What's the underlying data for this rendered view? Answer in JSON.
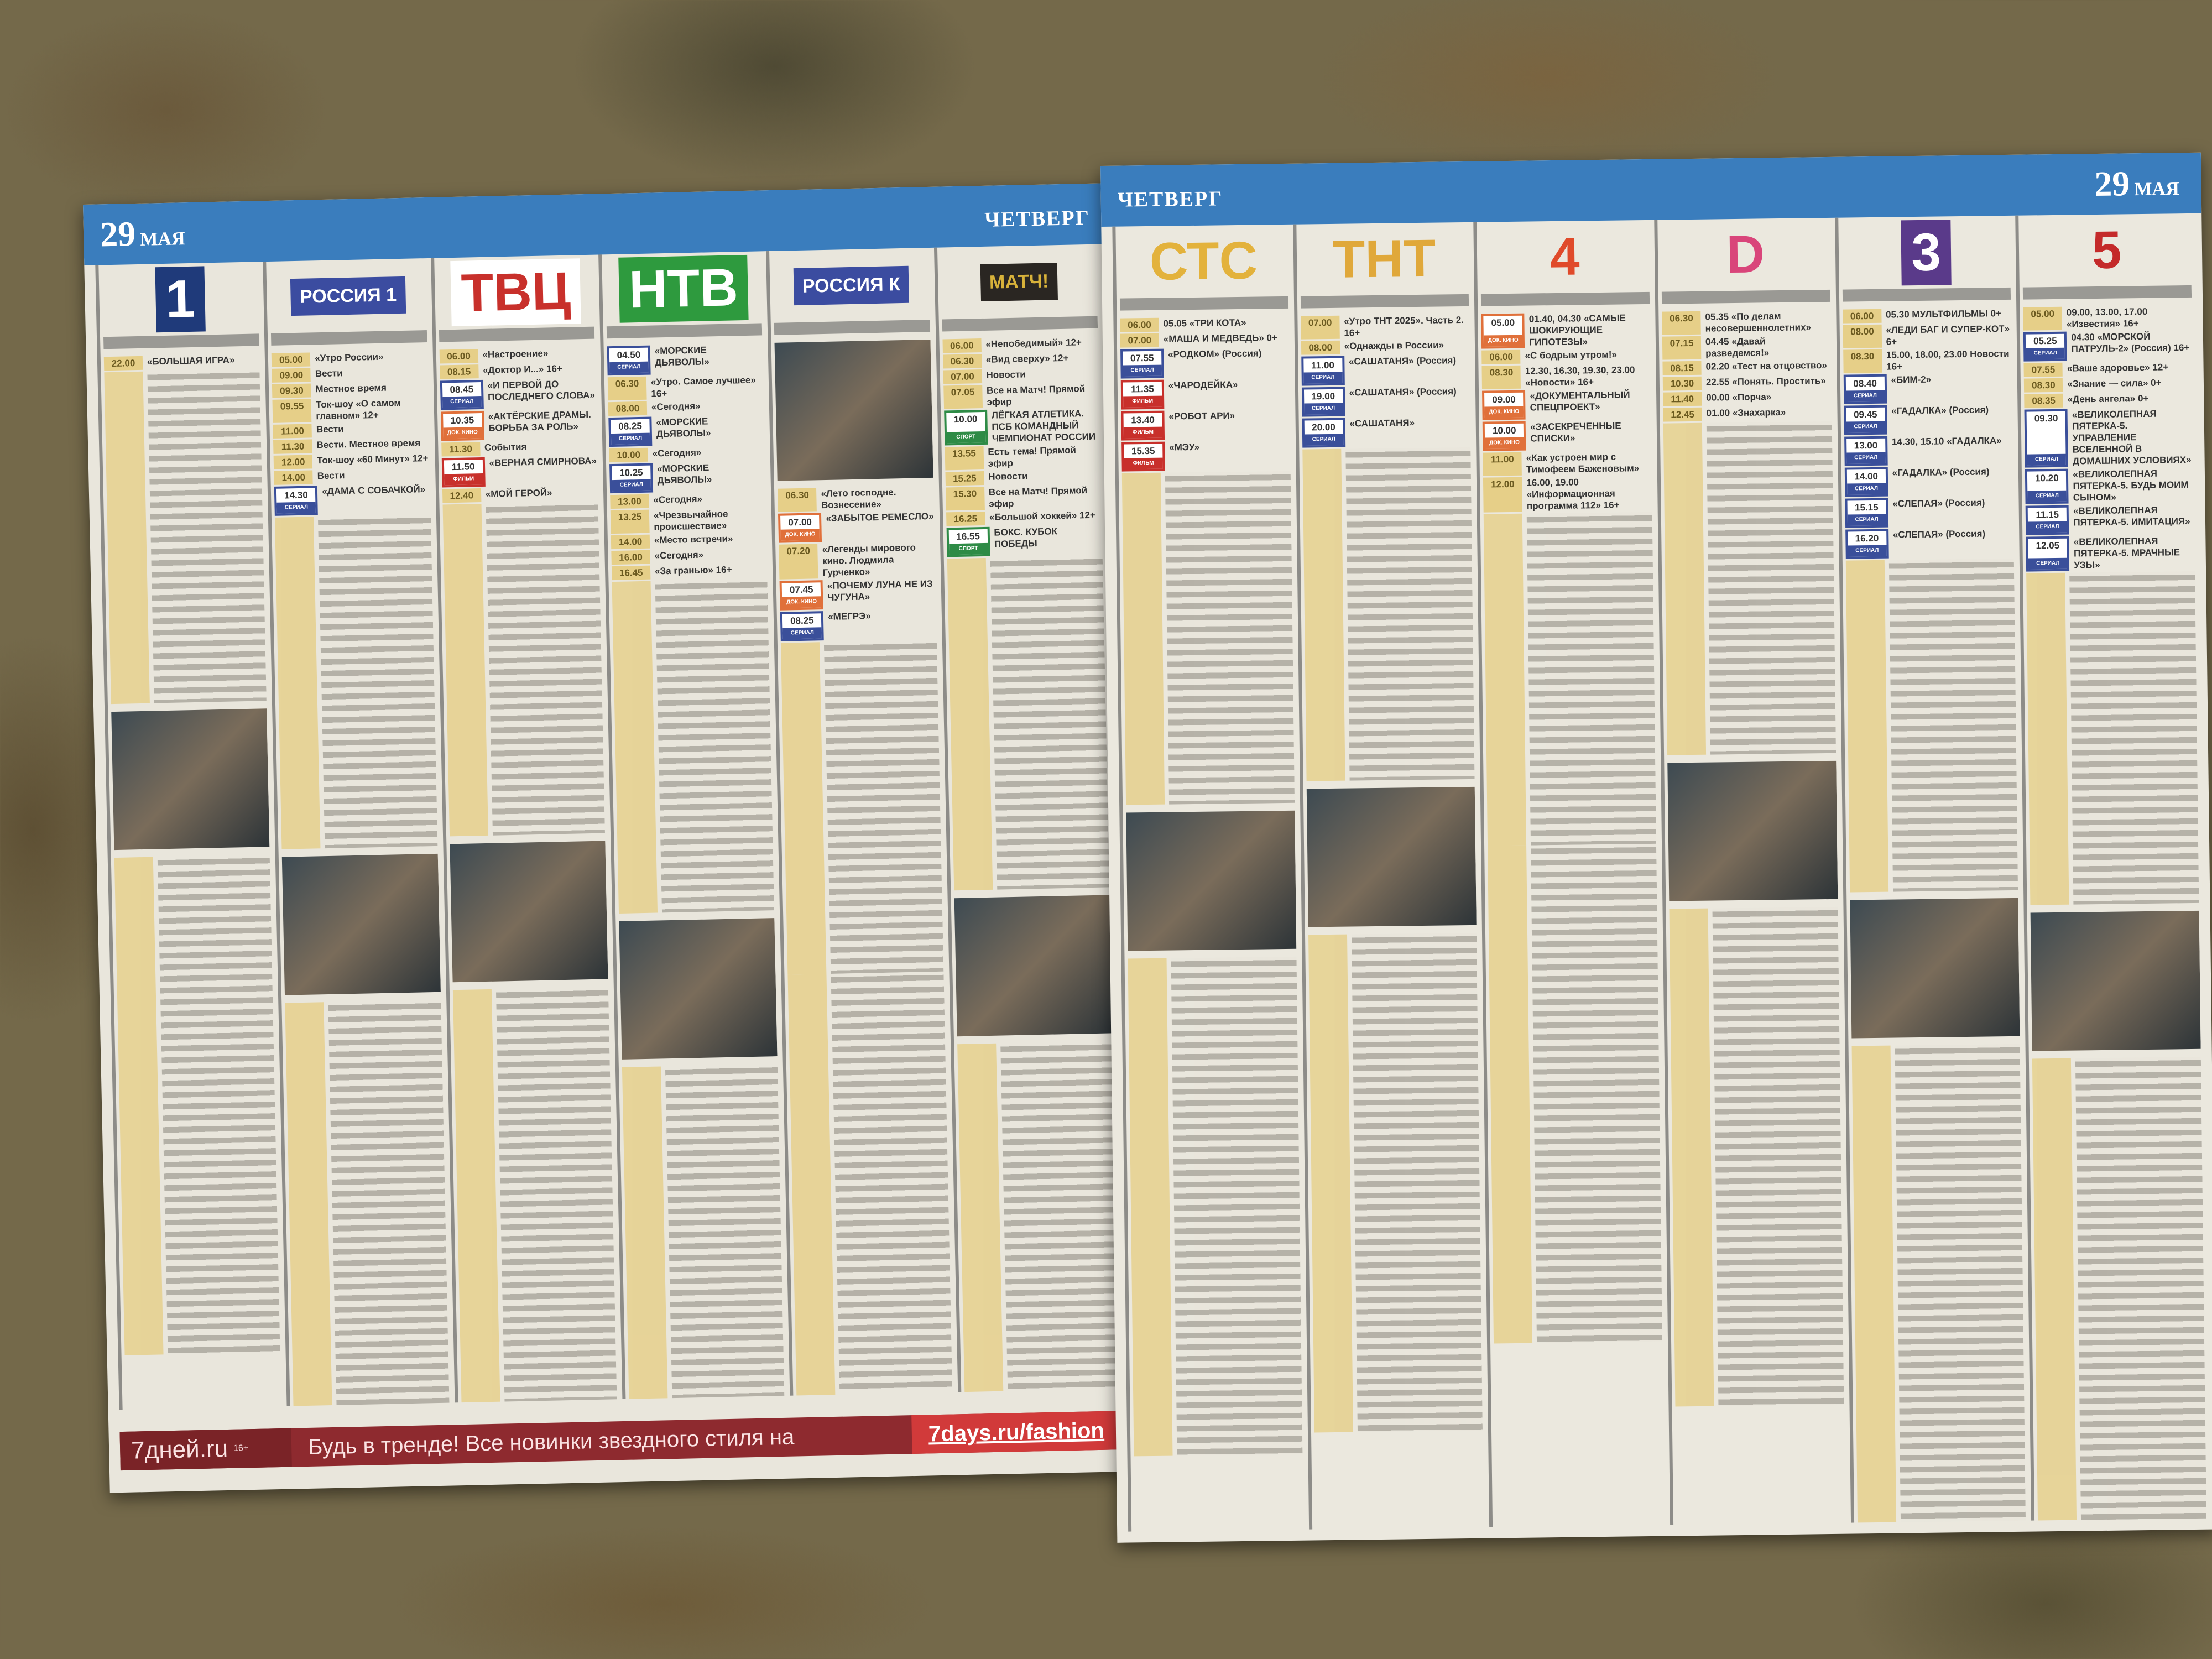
{
  "left_page": {
    "date": "29",
    "month": "МАЯ",
    "day": "ЧЕТВЕРГ",
    "channels": [
      {
        "logo": "1",
        "logo_bg": "#1f3a7a",
        "logo_fg": "#ffffff",
        "photo": true,
        "programs": [
          {
            "time": "22.00",
            "title": "«БОЛЬШАЯ ИГРА»"
          }
        ]
      },
      {
        "logo": "РОССИЯ 1",
        "logo_bg": "#3b4ca0",
        "logo_fg": "#ffffff",
        "photo": true,
        "programs": [
          {
            "time": "05.00",
            "title": "«Утро России»"
          },
          {
            "time": "09.00",
            "title": "Вести"
          },
          {
            "time": "09.30",
            "title": "Местное время"
          },
          {
            "time": "09.55",
            "title": "Ток-шоу «О самом главном» 12+"
          },
          {
            "time": "11.00",
            "title": "Вести"
          },
          {
            "time": "11.30",
            "title": "Вести. Местное время"
          },
          {
            "time": "12.00",
            "title": "Ток-шоу «60 Минут» 12+"
          },
          {
            "time": "14.00",
            "title": "Вести"
          },
          {
            "time": "14.30",
            "title": "«ДАМА С СОБАЧКОЙ»",
            "badge": "СЕРИАЛ",
            "kind": "serial"
          }
        ]
      },
      {
        "logo": "ТВЦ",
        "logo_bg": "#ffffff",
        "logo_fg": "#c8302b",
        "photo": true,
        "programs": [
          {
            "time": "06.00",
            "title": "«Настроение»"
          },
          {
            "time": "08.15",
            "title": "«Доктор И...» 16+"
          },
          {
            "time": "08.45",
            "title": "«И ПЕРВОЙ ДО ПОСЛЕДНЕГО СЛОВА»",
            "badge": "СЕРИАЛ",
            "kind": "serial"
          },
          {
            "time": "10.35",
            "title": "«АКТЁРСКИЕ ДРАМЫ. БОРЬБА ЗА РОЛЬ»",
            "badge": "ДОК. КИНО",
            "kind": "doc"
          },
          {
            "time": "11.30",
            "title": "События"
          },
          {
            "time": "11.50",
            "title": "«ВЕРНАЯ СМИРНОВА»",
            "badge": "ФИЛЬМ",
            "kind": "film"
          },
          {
            "time": "12.40",
            "title": "«МОЙ ГЕРОЙ»"
          }
        ]
      },
      {
        "logo": "НТВ",
        "logo_bg": "#2e9a3e",
        "logo_fg": "#ffffff",
        "photo": true,
        "programs": [
          {
            "time": "04.50",
            "title": "«МОРСКИЕ ДЬЯВОЛЫ»",
            "badge": "СЕРИАЛ",
            "kind": "serial"
          },
          {
            "time": "06.30",
            "title": "«Утро. Самое лучшее» 16+"
          },
          {
            "time": "08.00",
            "title": "«Сегодня»"
          },
          {
            "time": "08.25",
            "title": "«МОРСКИЕ ДЬЯВОЛЫ»",
            "badge": "СЕРИАЛ",
            "kind": "serial"
          },
          {
            "time": "10.00",
            "title": "«Сегодня»"
          },
          {
            "time": "10.25",
            "title": "«МОРСКИЕ ДЬЯВОЛЫ»",
            "badge": "СЕРИАЛ",
            "kind": "serial"
          },
          {
            "time": "13.00",
            "title": "«Сегодня»"
          },
          {
            "time": "13.25",
            "title": "«Чрезвычайное происшествие»"
          },
          {
            "time": "14.00",
            "title": "«Место встречи»"
          },
          {
            "time": "16.00",
            "title": "«Сегодня»"
          },
          {
            "time": "16.45",
            "title": "«За гранью» 16+"
          }
        ]
      },
      {
        "logo": "РОССИЯ К",
        "logo_bg": "#3b4ca0",
        "logo_fg": "#ffffff",
        "photo": true,
        "programs": [
          {
            "time": "06.30",
            "title": "«Лето господне. Вознесение»"
          },
          {
            "time": "07.00",
            "title": "«ЗАБЫТОЕ РЕМЕСЛО»",
            "badge": "ДОК. КИНО",
            "kind": "doc"
          },
          {
            "time": "07.20",
            "title": "«Легенды мирового кино. Людмила Гурченко»"
          },
          {
            "time": "07.45",
            "title": "«ПОЧЕМУ ЛУНА НЕ ИЗ ЧУГУНА»",
            "badge": "ДОК. КИНО",
            "kind": "doc"
          },
          {
            "time": "08.25",
            "title": "«МЕГРЭ»",
            "badge": "СЕРИАЛ",
            "kind": "serial"
          }
        ]
      },
      {
        "logo": "МАТЧ!",
        "logo_bg": "#2a2622",
        "logo_fg": "#d8b23a",
        "photo": true,
        "programs": [
          {
            "time": "06.00",
            "title": "«Непобедимый» 12+"
          },
          {
            "time": "06.30",
            "title": "«Вид сверху» 12+"
          },
          {
            "time": "07.00",
            "title": "Новости"
          },
          {
            "time": "07.05",
            "title": "Все на Матч! Прямой эфир"
          },
          {
            "time": "10.00",
            "title": "ЛЁГКАЯ АТЛЕТИКА. ПСБ КОМАНДНЫЙ ЧЕМПИОНАТ РОССИИ",
            "badge": "СПОРТ",
            "kind": "sport"
          },
          {
            "time": "13.55",
            "title": "Есть тема! Прямой эфир"
          },
          {
            "time": "15.25",
            "title": "Новости"
          },
          {
            "time": "15.30",
            "title": "Все на Матч! Прямой эфир"
          },
          {
            "time": "16.25",
            "title": "«Большой хоккей» 12+"
          },
          {
            "time": "16.55",
            "title": "БОКС. КУБОК ПОБЕДЫ",
            "badge": "СПОРТ",
            "kind": "sport"
          }
        ]
      }
    ],
    "ad": {
      "brand": "7дней.ru",
      "age": "16+",
      "slogan": "Будь в тренде! Все новинки звездного стиля на",
      "link": "7days.ru/fashion"
    }
  },
  "right_page": {
    "date": "29",
    "month": "МАЯ",
    "day": "ЧЕТВЕРГ",
    "channels": [
      {
        "logo": "СТС",
        "logo_bg": "transparent",
        "logo_fg": "#e3b23c",
        "photo": true,
        "programs": [
          {
            "time": "06.00",
            "title": "05.05 «ТРИ КОТА»"
          },
          {
            "time": "07.00",
            "title": "«МАША И МЕДВЕДЬ» 0+"
          },
          {
            "time": "07.55",
            "title": "«РОДКОМ» (Россия)",
            "badge": "СЕРИАЛ",
            "kind": "serial"
          },
          {
            "time": "11.35",
            "title": "«ЧАРОДЕЙКА»",
            "badge": "ФИЛЬМ",
            "kind": "film"
          },
          {
            "time": "13.40",
            "title": "«РОБОТ АРИ»",
            "badge": "ФИЛЬМ",
            "kind": "film"
          },
          {
            "time": "15.35",
            "title": "«МЭУ»",
            "badge": "ФИЛЬМ",
            "kind": "film"
          }
        ]
      },
      {
        "logo": "ТНТ",
        "logo_bg": "transparent",
        "logo_fg": "#e0a83a",
        "photo": true,
        "programs": [
          {
            "time": "07.00",
            "title": "«Утро ТНТ 2025». Часть 2. 16+"
          },
          {
            "time": "08.00",
            "title": "«Однажды в России»"
          },
          {
            "time": "11.00",
            "title": "«САШАТАНЯ» (Россия)",
            "badge": "СЕРИАЛ",
            "kind": "serial"
          },
          {
            "time": "19.00",
            "title": "«САШАТАНЯ» (Россия)",
            "badge": "СЕРИАЛ",
            "kind": "serial"
          },
          {
            "time": "20.00",
            "title": "«САШАТАНЯ»",
            "badge": "СЕРИАЛ",
            "kind": "serial"
          }
        ]
      },
      {
        "logo": "4",
        "logo_bg": "transparent",
        "logo_fg": "#e04a2a",
        "photo": false,
        "programs": [
          {
            "time": "05.00",
            "title": "01.40, 04.30 «САМЫЕ ШОКИРУЮЩИЕ ГИПОТЕЗЫ»",
            "badge": "ДОК. КИНО",
            "kind": "doc"
          },
          {
            "time": "06.00",
            "title": "«С бодрым утром!»"
          },
          {
            "time": "08.30",
            "title": "12.30, 16.30, 19.30, 23.00 «Новости» 16+"
          },
          {
            "time": "09.00",
            "title": "«ДОКУМЕНТАЛЬНЫЙ СПЕЦПРОЕКТ»",
            "badge": "ДОК. КИНО",
            "kind": "doc"
          },
          {
            "time": "10.00",
            "title": "«ЗАСЕКРЕЧЕННЫЕ СПИСКИ»",
            "badge": "ДОК. КИНО",
            "kind": "doc"
          },
          {
            "time": "11.00",
            "title": "«Как устроен мир с Тимофеем Баженовым»"
          },
          {
            "time": "12.00",
            "title": "16.00, 19.00 «Информационная программа 112» 16+"
          }
        ]
      },
      {
        "logo": "D",
        "logo_bg": "transparent",
        "logo_fg": "#d9457a",
        "photo": true,
        "programs": [
          {
            "time": "06.30",
            "title": "05.35 «По делам несовершеннолетних»"
          },
          {
            "time": "07.15",
            "title": "04.45 «Давай разведемся!»"
          },
          {
            "time": "08.15",
            "title": "02.20 «Тест на отцовство»"
          },
          {
            "time": "10.30",
            "title": "22.55 «Понять. Простить»"
          },
          {
            "time": "11.40",
            "title": "00.00 «Порча»"
          },
          {
            "time": "12.45",
            "title": "01.00 «Знахарка»"
          }
        ]
      },
      {
        "logo": "3",
        "logo_bg": "#5a3a8a",
        "logo_fg": "#ffffff",
        "photo": true,
        "programs": [
          {
            "time": "06.00",
            "title": "05.30 МУЛЬТФИЛЬМЫ 0+"
          },
          {
            "time": "08.00",
            "title": "«ЛЕДИ БАГ И СУПЕР-КОТ» 6+"
          },
          {
            "time": "08.30",
            "title": "15.00, 18.00, 23.00 Новости 16+"
          },
          {
            "time": "08.40",
            "title": "«БИМ-2»",
            "badge": "СЕРИАЛ",
            "kind": "serial"
          },
          {
            "time": "09.45",
            "title": "«ГАДАЛКА» (Россия)",
            "badge": "СЕРИАЛ",
            "kind": "serial"
          },
          {
            "time": "13.00",
            "title": "14.30, 15.10 «ГАДАЛКА»",
            "badge": "СЕРИАЛ",
            "kind": "serial"
          },
          {
            "time": "14.00",
            "title": "«ГАДАЛКА» (Россия)",
            "badge": "СЕРИАЛ",
            "kind": "serial"
          },
          {
            "time": "15.15",
            "title": "«СЛЕПАЯ» (Россия)",
            "badge": "СЕРИАЛ",
            "kind": "serial"
          },
          {
            "time": "16.20",
            "title": "«СЛЕПАЯ» (Россия)",
            "badge": "СЕРИАЛ",
            "kind": "serial"
          }
        ]
      },
      {
        "logo": "5",
        "logo_bg": "transparent",
        "logo_fg": "#c42a2a",
        "photo": true,
        "programs": [
          {
            "time": "05.00",
            "title": "09.00, 13.00, 17.00 «Известия» 16+"
          },
          {
            "time": "05.25",
            "title": "04.30 «МОРСКОЙ ПАТРУЛЬ-2» (Россия) 16+",
            "badge": "СЕРИАЛ",
            "kind": "serial"
          },
          {
            "time": "07.55",
            "title": "«Ваше здоровье» 12+"
          },
          {
            "time": "08.30",
            "title": "«Знание — сила» 0+"
          },
          {
            "time": "08.35",
            "title": "«День ангела» 0+"
          },
          {
            "time": "09.30",
            "title": "«ВЕЛИКОЛЕПНАЯ ПЯТЕРКА-5. УПРАВЛЕНИЕ ВСЕЛЕННОЙ В ДОМАШНИХ УСЛОВИЯХ»",
            "badge": "СЕРИАЛ",
            "kind": "serial"
          },
          {
            "time": "10.20",
            "title": "«ВЕЛИКОЛЕПНАЯ ПЯТЕРКА-5. БУДЬ МОИМ СЫНОМ»",
            "badge": "СЕРИАЛ",
            "kind": "serial"
          },
          {
            "time": "11.15",
            "title": "«ВЕЛИКОЛЕПНАЯ ПЯТЕРКА-5. ИМИТАЦИЯ»",
            "badge": "СЕРИАЛ",
            "kind": "serial"
          },
          {
            "time": "12.05",
            "title": "«ВЕЛИКОЛЕПНАЯ ПЯТЕРКА-5. МРАЧНЫЕ УЗЫ»",
            "badge": "СЕРИАЛ",
            "kind": "serial"
          }
        ]
      }
    ]
  }
}
